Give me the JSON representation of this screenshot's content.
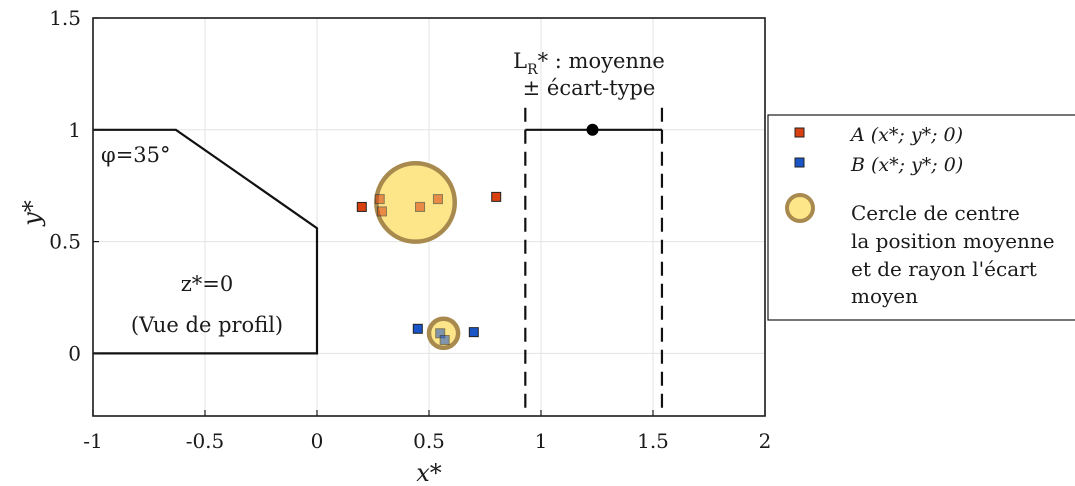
{
  "chart_data": {
    "type": "scatter",
    "xlabel": "x*",
    "ylabel": "y*",
    "xlim": [
      -1,
      2
    ],
    "ylim": [
      -0.28,
      1.5
    ],
    "xticks": [
      -1,
      -0.5,
      0,
      0.5,
      1,
      1.5,
      2
    ],
    "xtick_labels": [
      "-1",
      "-0.5",
      "0",
      "0.5",
      "1",
      "1.5",
      "2"
    ],
    "yticks": [
      0,
      0.5,
      1,
      1.5
    ],
    "ytick_labels": [
      "0",
      "0.5",
      "1",
      "1.5"
    ],
    "grid": true,
    "legend_position": "right",
    "profile_outline": [
      [
        -1,
        1
      ],
      [
        -0.63,
        1
      ],
      [
        0,
        0.56
      ],
      [
        0,
        0
      ],
      [
        -1,
        0
      ]
    ],
    "angle_label": "φ=35°",
    "plane_label": "z*=0",
    "view_label": "(Vue de profil)",
    "series": [
      {
        "name": "A",
        "legend_label": "A (x*; y*; 0)",
        "color": "#d9400f",
        "points": [
          [
            0.2,
            0.655
          ],
          [
            0.28,
            0.69
          ],
          [
            0.29,
            0.635
          ],
          [
            0.46,
            0.655
          ],
          [
            0.54,
            0.69
          ],
          [
            0.8,
            0.7
          ]
        ]
      },
      {
        "name": "B",
        "legend_label": "B (x*; y*; 0)",
        "color": "#1a55c8",
        "points": [
          [
            0.45,
            0.11
          ],
          [
            0.55,
            0.09
          ],
          [
            0.57,
            0.06
          ],
          [
            0.7,
            0.095
          ]
        ]
      }
    ],
    "circles": [
      {
        "series": "A",
        "cx": 0.44,
        "cy": 0.675,
        "r": 0.175
      },
      {
        "series": "B",
        "cx": 0.565,
        "cy": 0.09,
        "r": 0.065
      }
    ],
    "circle_fill": "#fde58a",
    "circle_stroke": "#a98a4e",
    "circle_legend_lines": [
      "Cercle de centre",
      "la position moyenne",
      "et de rayon l'écart",
      "moyen"
    ],
    "lr_stat": {
      "mean": 1.23,
      "low": 0.93,
      "high": 1.54,
      "y": 1.0,
      "label_main": "L",
      "label_sub": "R",
      "label_rest": "* : moyenne",
      "label_line2": "± écart-type"
    }
  }
}
